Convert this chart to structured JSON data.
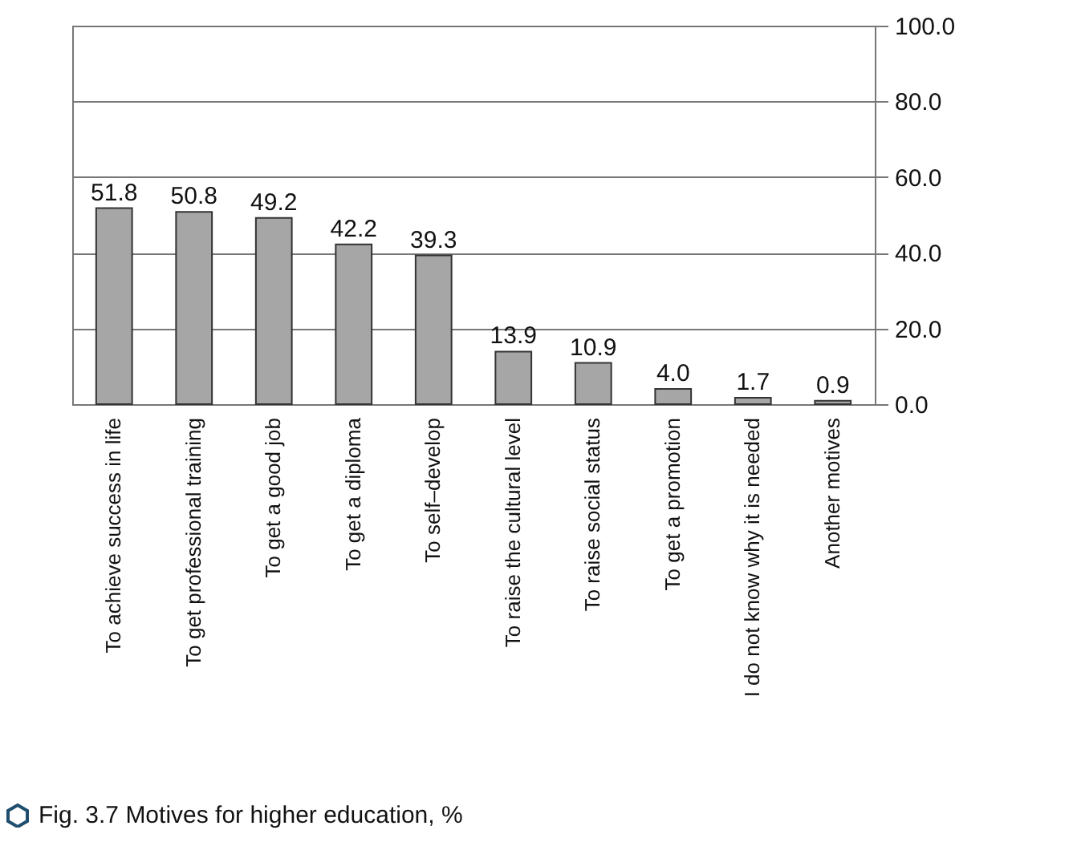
{
  "chart_data": {
    "type": "bar",
    "title": "Fig. 3.7 Motives for higher education, %",
    "categories": [
      "To achieve success in life",
      "To get professional training",
      "To get a good job",
      "To get a diploma",
      "To self–develop",
      "To raise the cultural level",
      "To raise social status",
      "To get a promotion",
      "I do not know why it is needed",
      "Another motives"
    ],
    "values": [
      51.8,
      50.8,
      49.2,
      42.2,
      39.3,
      13.9,
      10.9,
      4.0,
      1.7,
      0.9
    ],
    "value_labels": [
      "51.8",
      "50.8",
      "49.2",
      "42.2",
      "39.3",
      "13.9",
      "10.9",
      "4.0",
      "1.7",
      "0.9"
    ],
    "color": "#a6a6a6",
    "ylim": [
      0,
      100
    ],
    "yticks": [
      {
        "value": 0,
        "label": "0.0"
      },
      {
        "value": 20,
        "label": "20.0"
      },
      {
        "value": 40,
        "label": "40.0"
      },
      {
        "value": 60,
        "label": "60.0"
      },
      {
        "value": 80,
        "label": "80.0"
      },
      {
        "value": 100,
        "label": "100.0"
      }
    ],
    "grid": "y"
  }
}
